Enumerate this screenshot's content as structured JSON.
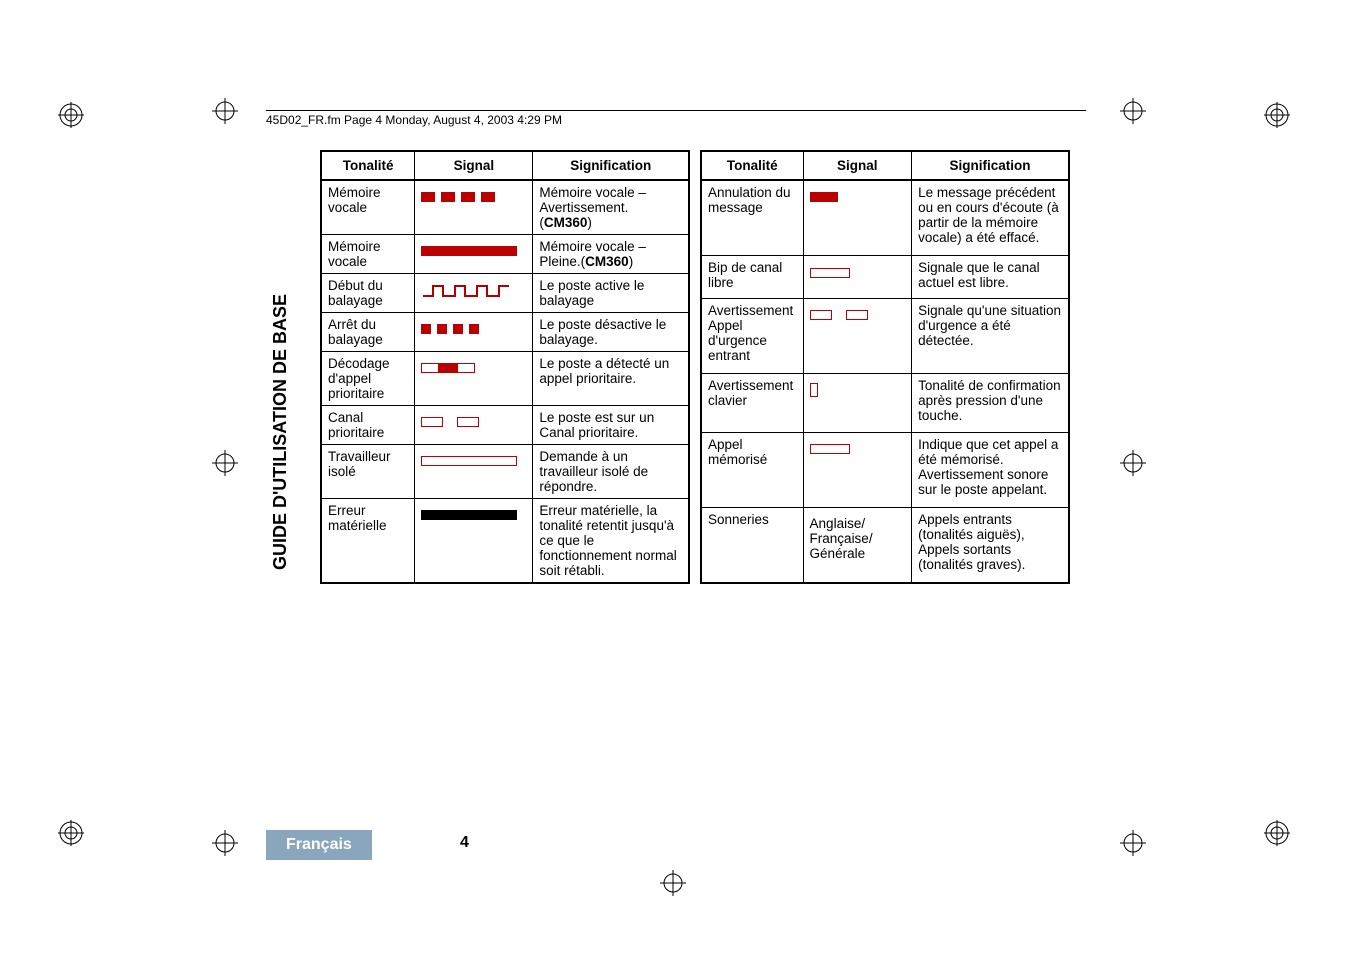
{
  "header": {
    "text": "45D02_FR.fm  Page 4  Monday, August 4, 2003  4:29 PM"
  },
  "sidebar": {
    "title": "GUIDE D'UTILISATION DE BASE"
  },
  "footer": {
    "lang": "Français",
    "page": "4"
  },
  "table": {
    "headers": {
      "tone": "Tonalité",
      "signal": "Signal",
      "meaning": "Signification"
    }
  },
  "left_rows": [
    {
      "tone": "Mémoire vocale",
      "signal": "dash4-red",
      "meaning": "Mémoire vocale – Avertissement. (CM360)"
    },
    {
      "tone": "Mémoire vocale",
      "signal": "solid-red",
      "meaning": "Mémoire vocale – Pleine.(CM360)"
    },
    {
      "tone": "Début du balayage",
      "signal": "wave-rise",
      "meaning": "Le poste active le balayage"
    },
    {
      "tone": "Arrêt du balayage",
      "signal": "dash4-red-short",
      "meaning": "Le poste désactive le balayage."
    },
    {
      "tone": "Décodage d'appel prioritaire",
      "signal": "box-red-box",
      "meaning": "Le poste a détecté un appel prioritaire."
    },
    {
      "tone": "Canal prioritaire",
      "signal": "box-gap-box",
      "meaning": "Le poste est sur un Canal prioritaire."
    },
    {
      "tone": "Travailleur isolé",
      "signal": "outline-long",
      "meaning": "Demande à un travailleur isolé de répondre."
    },
    {
      "tone": "Erreur matérielle",
      "signal": "solid-black",
      "meaning": "Erreur matérielle, la tonalité retentit jusqu'à ce que le fonctionnement normal soit rétabli."
    }
  ],
  "right_rows": [
    {
      "tone": "Annulation du message",
      "signal": "short-red",
      "meaning": "Le message précédent ou en cours d'écoute (à partir de la mémoire vocale) a été effacé."
    },
    {
      "tone": "Bip de canal libre",
      "signal": "outline-single",
      "meaning": "Signale que le canal actuel est libre."
    },
    {
      "tone": "Avertissement Appel d'urgence entrant",
      "signal": "box-gap-box",
      "meaning": "Signale qu'une situation d'urgence a été détectée."
    },
    {
      "tone": "Avertissement clavier",
      "signal": "tiny-box",
      "meaning": "Tonalité de confirmation après pression d'une touche."
    },
    {
      "tone": "Appel mémorisé",
      "signal": "outline-single",
      "meaning": "Indique que cet appel a été mémorisé. Avertissement sonore sur le poste appelant."
    },
    {
      "tone": "Sonneries",
      "signal_text": "Anglaise/ Française/ Générale",
      "meaning": "Appels entrants (tonalités aiguës), Appels sortants (tonalités graves)."
    }
  ],
  "colors": {
    "red": "#b00000",
    "black": "#000000",
    "badge": "#8aa6bd"
  }
}
